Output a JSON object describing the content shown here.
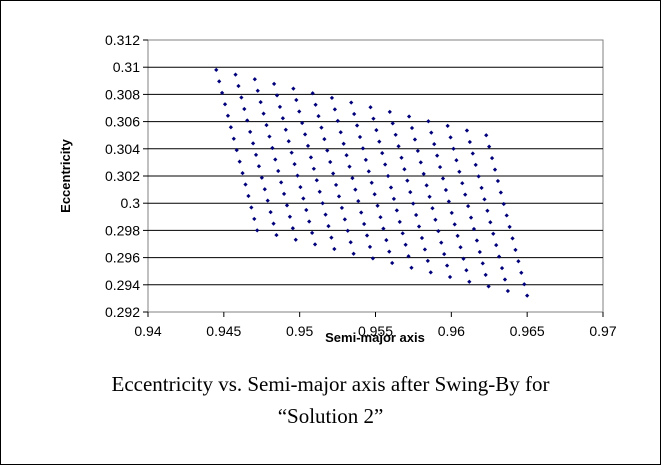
{
  "chart_data": {
    "type": "scatter",
    "xlabel": "Semi-major axis",
    "ylabel": "Eccentricity",
    "xlim": [
      0.94,
      0.97
    ],
    "ylim": [
      0.292,
      0.312
    ],
    "x_ticks": [
      "0.94",
      "0.945",
      "0.95",
      "0.955",
      "0.96",
      "0.965",
      "0.97"
    ],
    "y_ticks": [
      "0.312",
      "0.31",
      "0.308",
      "0.306",
      "0.304",
      "0.302",
      "0.3",
      "0.298",
      "0.296",
      "0.294",
      "0.292"
    ],
    "grid": "horizontal",
    "marker_color": "#00007a",
    "lattice": {
      "description": "parallelogram grid of points",
      "corners": {
        "top_left": [
          0.9445,
          0.3098
        ],
        "top_right": [
          0.9623,
          0.305
        ],
        "bottom_left": [
          0.9472,
          0.298
        ],
        "bottom_right": [
          0.966,
          0.2932
        ]
      },
      "rows": 15,
      "cols": 15
    }
  },
  "caption": {
    "line1": "Eccentricity vs. Semi-major axis after Swing-By for",
    "line2": "“Solution 2”"
  }
}
